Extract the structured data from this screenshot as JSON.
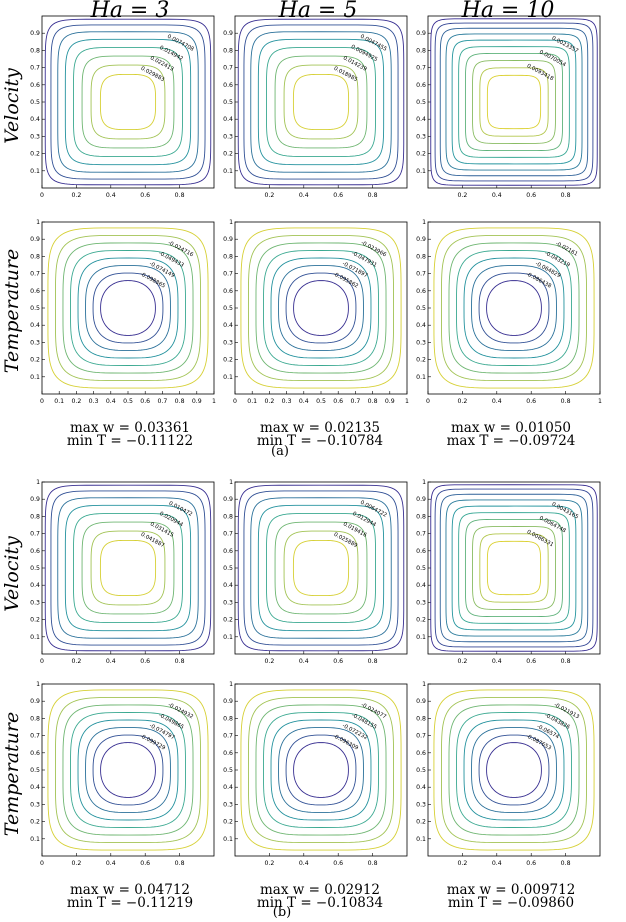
{
  "column_titles": [
    "Ha = 3",
    "Ha = 5",
    "Ha = 10"
  ],
  "row_titles": {
    "velocity": "Velocity",
    "temperature": "Temperature"
  },
  "sublabels": [
    "(a)",
    "(b)"
  ],
  "axis_ticks": {
    "narrow": [
      "0",
      "0.5",
      "1"
    ],
    "narrow_inner": [
      "0.1",
      "0.2",
      "0.3",
      "0.4",
      "0.5",
      "0.6",
      "0.7",
      "0.8",
      "0.9"
    ],
    "wide": [
      "0",
      "0.1",
      "0.2",
      "0.3",
      "0.4",
      "0.5",
      "0.6",
      "0.7",
      "0.8",
      "0.9",
      "1"
    ]
  },
  "colors": {
    "contour_low": "#3b1f8f",
    "contour_mid": "#21a2a0",
    "contour_high": "#f0d626",
    "frame": "#000000"
  },
  "chart_data": [
    {
      "type": "contour",
      "group": "(a)",
      "field": "Velocity",
      "title": "Ha = 3",
      "x_ticks": [
        "0",
        "0.2",
        "0.4",
        "0.6",
        "0.8"
      ],
      "y_ticks": [
        "0.1",
        "0.2",
        "0.3",
        "0.4",
        "0.5",
        "0.6",
        "0.7",
        "0.8",
        "0.9"
      ],
      "contour_labels": [
        "0.0074708",
        "0.014942",
        "0.022413",
        "0.029883"
      ],
      "levels": 8,
      "max_sign": 1
    },
    {
      "type": "contour",
      "group": "(a)",
      "field": "Velocity",
      "title": "Ha = 5",
      "x_ticks": [
        "0.2",
        "0.4",
        "0.6",
        "0.8"
      ],
      "y_ticks": [
        "0.1",
        "0.2",
        "0.3",
        "0.4",
        "0.5",
        "0.6",
        "0.7",
        "0.8",
        "0.9"
      ],
      "contour_labels": [
        "0.0047455",
        "0.0094925",
        "0.014239",
        "0.018985"
      ],
      "levels": 8,
      "max_sign": 1
    },
    {
      "type": "contour",
      "group": "(a)",
      "field": "Velocity",
      "title": "Ha = 10",
      "x_ticks": [
        "0.2",
        "0.4",
        "0.6",
        "0.8"
      ],
      "y_ticks": [
        "0.1",
        "0.2",
        "0.3",
        "0.4",
        "0.5",
        "0.6",
        "0.7",
        "0.8",
        "0.9"
      ],
      "contour_labels": [
        "0.0023357",
        "0.0070054",
        "0.0093418"
      ],
      "levels": 10,
      "max_sign": 1
    },
    {
      "type": "contour",
      "group": "(a)",
      "field": "Temperature",
      "title": "Ha = 3",
      "x_ticks": [
        "0",
        "0.1",
        "0.2",
        "0.3",
        "0.4",
        "0.5",
        "0.6",
        "0.7",
        "0.8",
        "0.9",
        "1"
      ],
      "y_ticks": [
        "0.1",
        "0.2",
        "0.3",
        "0.4",
        "0.5",
        "0.6",
        "0.7",
        "0.8",
        "0.9",
        "1"
      ],
      "contour_labels": [
        "-0.024716",
        "-0.049433",
        "-0.074149",
        "-0.098865"
      ],
      "levels": 8,
      "max_sign": -1
    },
    {
      "type": "contour",
      "group": "(a)",
      "field": "Temperature",
      "title": "Ha = 5",
      "x_ticks": [
        "0",
        "0.1",
        "0.2",
        "0.3",
        "0.4",
        "0.5",
        "0.6",
        "0.7",
        "0.8",
        "0.9",
        "1"
      ],
      "y_ticks": [
        "0.1",
        "0.2",
        "0.3",
        "0.4",
        "0.5",
        "0.6",
        "0.7",
        "0.8",
        "0.9",
        "1"
      ],
      "contour_labels": [
        "-0.023966",
        "-0.047931",
        "-0.071897",
        "-0.095862"
      ],
      "levels": 8,
      "max_sign": -1
    },
    {
      "type": "contour",
      "group": "(a)",
      "field": "Temperature",
      "title": "Ha = 10",
      "x_ticks": [
        "0",
        "0.2",
        "0.4",
        "0.6",
        "0.8",
        "1"
      ],
      "y_ticks": [
        "0.1",
        "0.2",
        "0.3",
        "0.4",
        "0.5",
        "0.6",
        "0.7",
        "0.8",
        "0.9",
        "1"
      ],
      "contour_labels": [
        "-0.02161",
        "-0.043219",
        "-0.064829",
        "-0.086438"
      ],
      "levels": 8,
      "max_sign": -1
    },
    {
      "type": "contour",
      "group": "(b)",
      "field": "Velocity",
      "title": "Ha = 3",
      "x_ticks": [
        "0",
        "0.2",
        "0.4",
        "0.6",
        "0.8"
      ],
      "y_ticks": [
        "0.1",
        "0.2",
        "0.3",
        "0.4",
        "0.5",
        "0.6",
        "0.7",
        "0.8",
        "0.9",
        "1"
      ],
      "contour_labels": [
        "0.010472",
        "0.020944",
        "0.031415",
        "0.041887"
      ],
      "levels": 8,
      "max_sign": 1
    },
    {
      "type": "contour",
      "group": "(b)",
      "field": "Velocity",
      "title": "Ha = 5",
      "x_ticks": [
        "0.2",
        "0.4",
        "0.6",
        "0.8"
      ],
      "y_ticks": [
        "0.1",
        "0.2",
        "0.3",
        "0.4",
        "0.5",
        "0.6",
        "0.7",
        "0.8",
        "0.9",
        "1"
      ],
      "contour_labels": [
        "0.0064722",
        "0.012944",
        "0.019416",
        "0.025889"
      ],
      "levels": 8,
      "max_sign": 1
    },
    {
      "type": "contour",
      "group": "(b)",
      "field": "Velocity",
      "title": "Ha = 10",
      "x_ticks": [
        "0.2",
        "0.4",
        "0.6",
        "0.8"
      ],
      "y_ticks": [
        "0.1",
        "0.2",
        "0.3",
        "0.4",
        "0.5",
        "0.6",
        "0.7",
        "0.8",
        "0.9",
        "1"
      ],
      "contour_labels": [
        "0.0043165",
        "0.0064748",
        "0.0086331"
      ],
      "levels": 10,
      "max_sign": 1
    },
    {
      "type": "contour",
      "group": "(b)",
      "field": "Temperature",
      "title": "Ha = 3",
      "x_ticks": [
        "0",
        "0.2",
        "0.4",
        "0.6",
        "0.8"
      ],
      "y_ticks": [
        "0.1",
        "0.2",
        "0.3",
        "0.4",
        "0.5",
        "0.6",
        "0.7",
        "0.8",
        "0.9",
        "1"
      ],
      "contour_labels": [
        "-0.024932",
        "-0.049865",
        "-0.074797",
        "-0.099729"
      ],
      "levels": 8,
      "max_sign": -1
    },
    {
      "type": "contour",
      "group": "(b)",
      "field": "Temperature",
      "title": "Ha = 5",
      "x_ticks": [
        "0.2",
        "0.4",
        "0.6",
        "0.8"
      ],
      "y_ticks": [
        "0.1",
        "0.2",
        "0.3",
        "0.4",
        "0.5",
        "0.6",
        "0.7",
        "0.8",
        "0.9",
        "1"
      ],
      "contour_labels": [
        "-0.024077",
        "-0.048155",
        "-0.072232",
        "-0.096309"
      ],
      "levels": 8,
      "max_sign": -1
    },
    {
      "type": "contour",
      "group": "(b)",
      "field": "Temperature",
      "title": "Ha = 10",
      "x_ticks": [
        "0.2",
        "0.4",
        "0.6",
        "0.8"
      ],
      "y_ticks": [
        "0.1",
        "0.2",
        "0.3",
        "0.4",
        "0.5",
        "0.6",
        "0.7",
        "0.8",
        "0.9",
        "1"
      ],
      "contour_labels": [
        "-0.021913",
        "-0.043826",
        "-0.06574",
        "-0.087653"
      ],
      "levels": 8,
      "max_sign": -1
    }
  ],
  "captions": [
    {
      "line1": "max w = 0.03361",
      "line2": "min T = −0.11122"
    },
    {
      "line1": "max w = 0.02135",
      "line2": "min T = −0.10784"
    },
    {
      "line1": "max w = 0.01050",
      "line2": "max T = −0.09724"
    },
    {
      "line1": "max w = 0.04712",
      "line2": "min T = −0.11219"
    },
    {
      "line1": "max w = 0.02912",
      "line2": "min T = −0.10834"
    },
    {
      "line1": "max w = 0.009712",
      "line2": "min T = −0.09860"
    }
  ]
}
